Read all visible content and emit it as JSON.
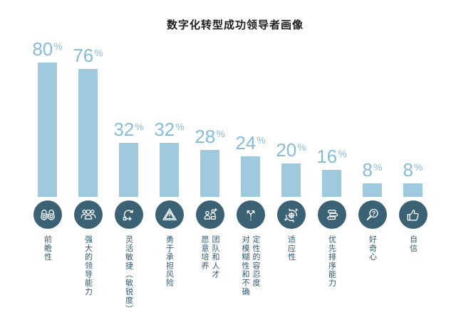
{
  "title": "数字化转型成功领导者画像",
  "colors": {
    "background": "#ffffff",
    "bar_fill": "#9fcade",
    "value_text": "#85bcda",
    "circle_fill": "#3a6274",
    "label_text": "#2e5b72",
    "title_text": "#1f1f1f",
    "icon_stroke": "#ffffff"
  },
  "chart_data": {
    "type": "bar",
    "title": "数字化转型成功领导者画像",
    "orientation": "vertical",
    "value_suffix": "%",
    "categories": [
      "前瞻性",
      "强大的领导能力",
      "灵活敏捷（敏锐度）",
      "勇于承担风险",
      "愿意培养团队和人才",
      "对模糊性和不确定性的容忍度",
      "适应性",
      "优先排序能力",
      "好奇心",
      "自信"
    ],
    "values": [
      80,
      76,
      32,
      32,
      28,
      24,
      20,
      16,
      8,
      8
    ],
    "ylim": [
      0,
      100
    ],
    "grid": false,
    "legend": false,
    "icons": [
      "binoculars",
      "team",
      "agile-cycle",
      "risk-warning",
      "talent-development",
      "branching-arrows",
      "adaptability-gear",
      "stacked-layers",
      "curiosity-magnifier",
      "thumbs-up"
    ]
  },
  "bars": [
    {
      "value": 80,
      "label_columns": [
        "前瞻性"
      ]
    },
    {
      "value": 76,
      "label_columns": [
        "强大的领导能力"
      ]
    },
    {
      "value": 32,
      "label_columns": [
        "灵活敏捷（敏锐度）"
      ]
    },
    {
      "value": 32,
      "label_columns": [
        "勇于承担风险"
      ]
    },
    {
      "value": 28,
      "label_columns": [
        "愿意培养",
        "团队和人才"
      ]
    },
    {
      "value": 24,
      "label_columns": [
        "对模糊性和不确",
        "定性的容忍度"
      ]
    },
    {
      "value": 20,
      "label_columns": [
        "适应性"
      ]
    },
    {
      "value": 16,
      "label_columns": [
        "优先排序能力"
      ]
    },
    {
      "value": 8,
      "label_columns": [
        "好奇心"
      ]
    },
    {
      "value": 8,
      "label_columns": [
        "自信"
      ]
    }
  ]
}
